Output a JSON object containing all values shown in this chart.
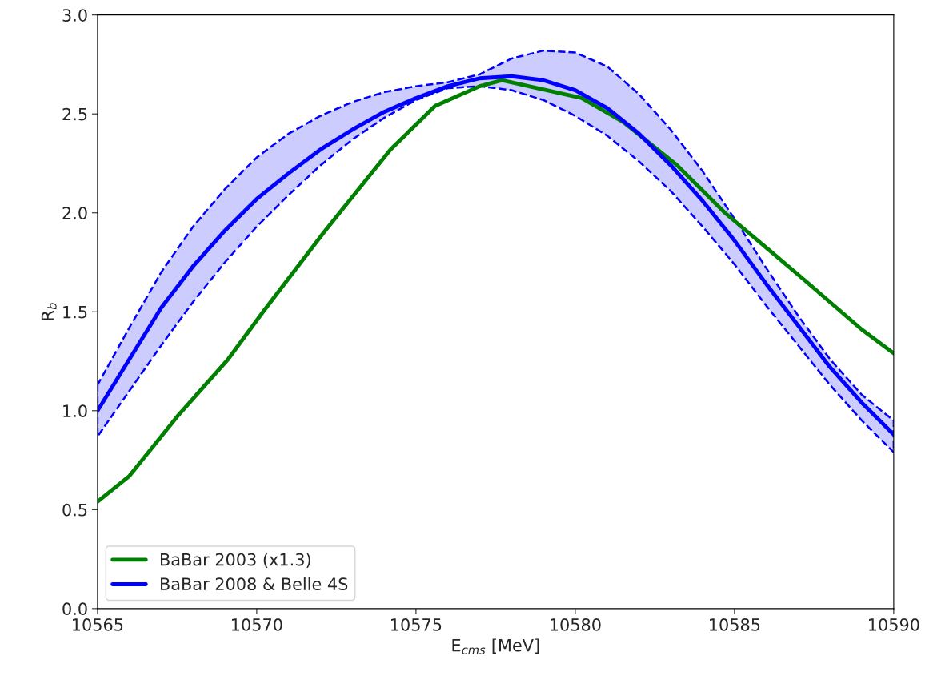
{
  "chart_data": {
    "type": "line",
    "xlabel": "E$_{cms}$ [MeV]",
    "ylabel": "R$_{b}$",
    "xlim": [
      10565,
      10590
    ],
    "xticks": [
      10565,
      10570,
      10575,
      10580,
      10585,
      10590
    ],
    "ylim": [
      0.0,
      3.0
    ],
    "yticks": [
      {
        "value": 0,
        "label": "0.0"
      },
      {
        "value": 0.5,
        "label": "0.5"
      },
      {
        "value": 1,
        "label": "1.0"
      },
      {
        "value": 1.5,
        "label": "1.5"
      },
      {
        "value": 2,
        "label": "2.0"
      },
      {
        "value": 2.5,
        "label": "2.5"
      },
      {
        "value": 3,
        "label": "3.0"
      }
    ],
    "grid": false,
    "legend": "bottom left",
    "series": [
      {
        "name": "BaBar 2003 (x1.3)",
        "color": "#008000",
        "x": [
          10565,
          10566,
          10567.5,
          10569.1,
          10570.2,
          10572.1,
          10574.2,
          10575.6,
          10577,
          10577.7,
          10580.2,
          10581.5,
          10583.2,
          10584.7,
          10586.1,
          10587.2,
          10589,
          10590
        ],
        "values": [
          0.54,
          0.67,
          0.97,
          1.26,
          1.5,
          1.9,
          2.32,
          2.54,
          2.64,
          2.67,
          2.58,
          2.46,
          2.24,
          2.0,
          1.81,
          1.66,
          1.41,
          1.29
        ]
      },
      {
        "name": "BaBar 2008 & Belle 4S",
        "color": "#0000ff",
        "x": [
          10565,
          10566,
          10567,
          10568,
          10569,
          10570,
          10571,
          10572,
          10573,
          10574,
          10575,
          10576,
          10577,
          10578,
          10579,
          10580,
          10581,
          10582,
          10583,
          10584,
          10585,
          10586,
          10587,
          10588,
          10589,
          10590
        ],
        "values": [
          1.0,
          1.26,
          1.52,
          1.73,
          1.91,
          2.07,
          2.2,
          2.32,
          2.42,
          2.51,
          2.58,
          2.64,
          2.68,
          2.69,
          2.67,
          2.62,
          2.53,
          2.4,
          2.24,
          2.06,
          1.86,
          1.64,
          1.43,
          1.22,
          1.04,
          0.88
        ],
        "upper": [
          1.13,
          1.42,
          1.7,
          1.93,
          2.12,
          2.28,
          2.4,
          2.49,
          2.56,
          2.61,
          2.64,
          2.66,
          2.7,
          2.78,
          2.82,
          2.81,
          2.74,
          2.6,
          2.42,
          2.21,
          1.97,
          1.72,
          1.48,
          1.26,
          1.08,
          0.95
        ],
        "lower": [
          0.87,
          1.1,
          1.33,
          1.55,
          1.75,
          1.93,
          2.09,
          2.24,
          2.37,
          2.48,
          2.57,
          2.63,
          2.64,
          2.62,
          2.57,
          2.49,
          2.39,
          2.26,
          2.11,
          1.93,
          1.74,
          1.53,
          1.33,
          1.13,
          0.95,
          0.79
        ]
      }
    ]
  }
}
